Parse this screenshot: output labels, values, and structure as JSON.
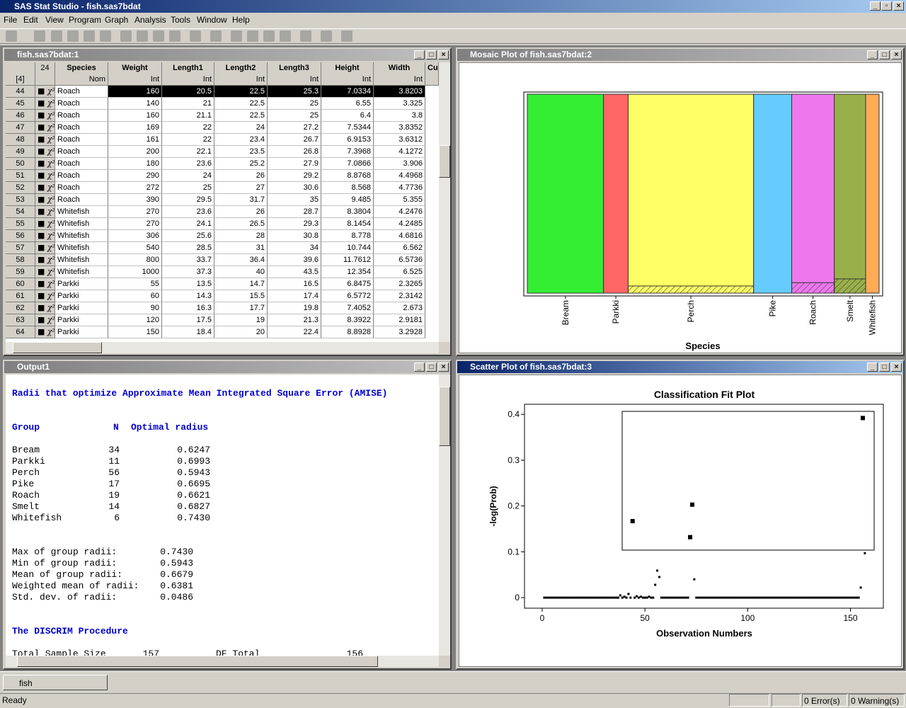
{
  "app": {
    "title": "SAS Stat Studio - fish.sas7bdat",
    "menu": [
      "File",
      "Edit",
      "View",
      "Program",
      "Graph",
      "Analysis",
      "Tools",
      "Window",
      "Help"
    ],
    "tab": "fish",
    "status": "Ready",
    "errors": "0 Error(s)",
    "warnings": "0 Warning(s)"
  },
  "table": {
    "window_title": "fish.sas7bdat:1",
    "corner_count": "24",
    "selected_count": "[4]",
    "columns": [
      {
        "name": "Species",
        "measure": "Nom"
      },
      {
        "name": "Weight",
        "measure": "Int"
      },
      {
        "name": "Length1",
        "measure": "Int"
      },
      {
        "name": "Length2",
        "measure": "Int"
      },
      {
        "name": "Length3",
        "measure": "Int"
      },
      {
        "name": "Height",
        "measure": "Int"
      },
      {
        "name": "Width",
        "measure": "Int"
      },
      {
        "name": "Cu"
      }
    ],
    "active_row": "44",
    "rows": [
      [
        "44",
        "Roach",
        "160",
        "20.5",
        "22.5",
        "25.3",
        "7.0334",
        "3.8203"
      ],
      [
        "45",
        "Roach",
        "140",
        "21",
        "22.5",
        "25",
        "6.55",
        "3.325"
      ],
      [
        "46",
        "Roach",
        "160",
        "21.1",
        "22.5",
        "25",
        "6.4",
        "3.8"
      ],
      [
        "47",
        "Roach",
        "169",
        "22",
        "24",
        "27.2",
        "7.5344",
        "3.8352"
      ],
      [
        "48",
        "Roach",
        "161",
        "22",
        "23.4",
        "26.7",
        "6.9153",
        "3.6312"
      ],
      [
        "49",
        "Roach",
        "200",
        "22.1",
        "23.5",
        "26.8",
        "7.3968",
        "4.1272"
      ],
      [
        "50",
        "Roach",
        "180",
        "23.6",
        "25.2",
        "27.9",
        "7.0866",
        "3.906"
      ],
      [
        "51",
        "Roach",
        "290",
        "24",
        "26",
        "29.2",
        "8.8768",
        "4.4968"
      ],
      [
        "52",
        "Roach",
        "272",
        "25",
        "27",
        "30.6",
        "8.568",
        "4.7736"
      ],
      [
        "53",
        "Roach",
        "390",
        "29.5",
        "31.7",
        "35",
        "9.485",
        "5.355"
      ],
      [
        "54",
        "Whitefish",
        "270",
        "23.6",
        "26",
        "28.7",
        "8.3804",
        "4.2476"
      ],
      [
        "55",
        "Whitefish",
        "270",
        "24.1",
        "26.5",
        "29.3",
        "8.1454",
        "4.2485"
      ],
      [
        "56",
        "Whitefish",
        "306",
        "25.6",
        "28",
        "30.8",
        "8.778",
        "4.6816"
      ],
      [
        "57",
        "Whitefish",
        "540",
        "28.5",
        "31",
        "34",
        "10.744",
        "6.562"
      ],
      [
        "58",
        "Whitefish",
        "800",
        "33.7",
        "36.4",
        "39.6",
        "11.7612",
        "6.5736"
      ],
      [
        "59",
        "Whitefish",
        "1000",
        "37.3",
        "40",
        "43.5",
        "12.354",
        "6.525"
      ],
      [
        "60",
        "Parkki",
        "55",
        "13.5",
        "14.7",
        "16.5",
        "6.8475",
        "2.3265"
      ],
      [
        "61",
        "Parkki",
        "60",
        "14.3",
        "15.5",
        "17.4",
        "6.5772",
        "2.3142"
      ],
      [
        "62",
        "Parkki",
        "90",
        "16.3",
        "17.7",
        "19.8",
        "7.4052",
        "2.673"
      ],
      [
        "63",
        "Parkki",
        "120",
        "17.5",
        "19",
        "21.3",
        "8.3922",
        "2.9181"
      ],
      [
        "64",
        "Parkki",
        "150",
        "18.4",
        "20",
        "22.4",
        "8.8928",
        "3.2928"
      ]
    ]
  },
  "output": {
    "window_title": "Output1",
    "heading": "Radii that optimize Approximate Mean Integrated Square Error (AMISE)",
    "columns": [
      "Group",
      "N",
      "Optimal radius"
    ],
    "rows": [
      [
        "Bream",
        "34",
        "0.6247"
      ],
      [
        "Parkki",
        "11",
        "0.6993"
      ],
      [
        "Perch",
        "56",
        "0.5943"
      ],
      [
        "Pike",
        "17",
        "0.6695"
      ],
      [
        "Roach",
        "19",
        "0.6621"
      ],
      [
        "Smelt",
        "14",
        "0.6827"
      ],
      [
        "Whitefish",
        "6",
        "0.7430"
      ]
    ],
    "stats": [
      [
        "Max of group radii:",
        "0.7430"
      ],
      [
        "Min of group radii:",
        "0.5943"
      ],
      [
        "Mean of group radii:",
        "0.6679"
      ],
      [
        "Weighted mean of radii:",
        "0.6381"
      ],
      [
        "Std. dev. of radii:",
        "0.0486"
      ]
    ],
    "procedure": "The DISCRIM Procedure",
    "summary": [
      "Total Sample Size",
      "157",
      "DF Total",
      "156"
    ]
  },
  "mosaic_window_title": "Mosaic Plot of fish.sas7bdat:2",
  "scatter_window_title": "Scatter Plot of fish.sas7bdat:3",
  "chart_data": [
    {
      "type": "mosaic",
      "xlabel": "Species",
      "categories": [
        "Bream",
        "Parkki",
        "Perch",
        "Pike",
        "Roach",
        "Smelt",
        "Whitefish"
      ],
      "values": [
        34,
        11,
        56,
        17,
        19,
        14,
        6
      ],
      "selected": [
        0,
        0,
        2,
        0,
        1,
        1,
        0
      ],
      "colors": [
        "#33ee33",
        "#ff6666",
        "#ffff66",
        "#66ccff",
        "#ee77ee",
        "#99b04a",
        "#ffaa55"
      ]
    },
    {
      "type": "scatter",
      "title": "Classification Fit Plot",
      "xlabel": "Observation Numbers",
      "ylabel": "-log(Prob)",
      "xlim": [
        -8.6,
        166
      ],
      "ylim": [
        -0.023,
        0.422
      ],
      "xticks": [
        0,
        50,
        100,
        150
      ],
      "yticks": [
        0,
        0.1,
        0.2,
        0.3,
        0.4
      ],
      "color": "#000000",
      "selected_observations": [
        44,
        72,
        73,
        156
      ],
      "x": [
        1,
        2,
        3,
        4,
        5,
        6,
        7,
        8,
        9,
        10,
        11,
        12,
        13,
        14,
        15,
        16,
        17,
        18,
        19,
        20,
        21,
        22,
        23,
        24,
        25,
        26,
        27,
        28,
        29,
        30,
        31,
        32,
        33,
        34,
        35,
        36,
        37,
        38,
        39,
        40,
        41,
        42,
        43,
        44,
        45,
        46,
        47,
        48,
        49,
        50,
        51,
        52,
        53,
        54,
        55,
        56,
        57,
        58,
        59,
        60,
        61,
        62,
        63,
        64,
        65,
        66,
        67,
        68,
        69,
        70,
        71,
        72,
        73,
        74,
        75,
        76,
        77,
        78,
        79,
        80,
        81,
        82,
        83,
        84,
        85,
        86,
        87,
        88,
        89,
        90,
        91,
        92,
        93,
        94,
        95,
        96,
        97,
        98,
        99,
        100,
        101,
        102,
        103,
        104,
        105,
        106,
        107,
        108,
        109,
        110,
        111,
        112,
        113,
        114,
        115,
        116,
        117,
        118,
        119,
        120,
        121,
        122,
        123,
        124,
        125,
        126,
        127,
        128,
        129,
        130,
        131,
        132,
        133,
        134,
        135,
        136,
        137,
        138,
        139,
        140,
        141,
        142,
        143,
        144,
        145,
        146,
        147,
        148,
        149,
        150,
        151,
        152,
        153,
        154,
        155,
        156,
        157
      ],
      "values": [
        0,
        0,
        0,
        0,
        0,
        0,
        0,
        0,
        0,
        0,
        0,
        0,
        0,
        0,
        0,
        0,
        0,
        0,
        0,
        0,
        0,
        0,
        0,
        0,
        0,
        0,
        0,
        0,
        0,
        0,
        0,
        0,
        0,
        0,
        0,
        0,
        0,
        0.005,
        0,
        0.002,
        0,
        0.008,
        0,
        0.167,
        0,
        0.003,
        0,
        0.002,
        0,
        0,
        0,
        0.002,
        0,
        0,
        0.028,
        0.059,
        0.045,
        0,
        0,
        0,
        0,
        0,
        0,
        0,
        0,
        0,
        0,
        0,
        0,
        0,
        0,
        0.132,
        0.203,
        0.04,
        0,
        0,
        0,
        0,
        0,
        0,
        0,
        0,
        0,
        0,
        0,
        0,
        0,
        0,
        0,
        0,
        0,
        0,
        0,
        0,
        0,
        0,
        0,
        0,
        0,
        0,
        0,
        0,
        0,
        0,
        0,
        0,
        0,
        0,
        0,
        0,
        0,
        0,
        0,
        0,
        0,
        0,
        0,
        0,
        0,
        0,
        0,
        0,
        0,
        0,
        0,
        0,
        0,
        0,
        0,
        0,
        0,
        0,
        0,
        0,
        0,
        0,
        0,
        0,
        0,
        0,
        0,
        0,
        0,
        0,
        0,
        0,
        0,
        0,
        0,
        0,
        0,
        0,
        0,
        0,
        0.022,
        0.392,
        0.097
      ]
    }
  ]
}
